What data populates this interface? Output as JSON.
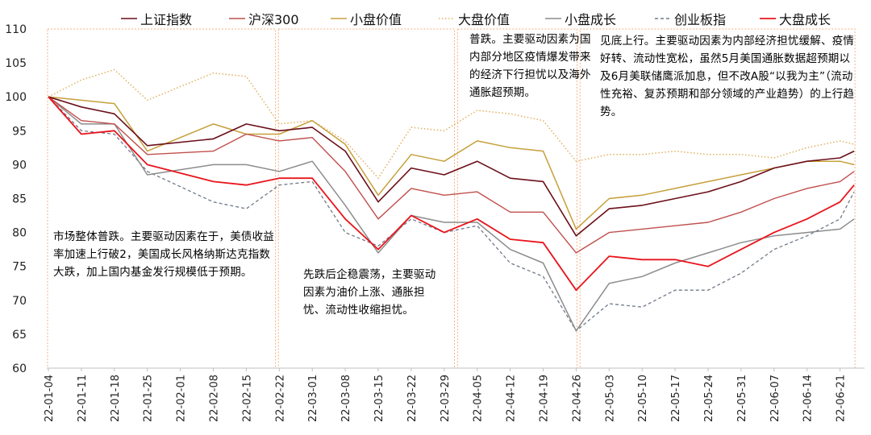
{
  "chart_data": {
    "type": "line",
    "ylim": [
      60,
      110
    ],
    "yticks": [
      60,
      65,
      70,
      75,
      80,
      85,
      90,
      95,
      100,
      105,
      110
    ],
    "xtick_labels": [
      "22-01-04",
      "22-01-11",
      "22-01-18",
      "22-01-25",
      "22-02-01",
      "22-02-08",
      "22-02-15",
      "22-02-22",
      "22-03-01",
      "22-03-08",
      "22-03-15",
      "22-03-22",
      "22-03-29",
      "22-04-05",
      "22-04-12",
      "22-04-19",
      "22-04-26",
      "22-05-03",
      "22-05-10",
      "22-05-17",
      "22-05-24",
      "22-05-31",
      "22-06-07",
      "22-06-14",
      "22-06-21"
    ],
    "x": [
      "22-01-04",
      "22-01-11",
      "22-01-18",
      "22-01-25",
      "22-02-08",
      "22-02-15",
      "22-02-22",
      "22-03-01",
      "22-03-08",
      "22-03-15",
      "22-03-22",
      "22-03-29",
      "22-04-05",
      "22-04-12",
      "22-04-19",
      "22-04-26",
      "22-05-03",
      "22-05-10",
      "22-05-17",
      "22-05-24",
      "22-05-31",
      "22-06-07",
      "22-06-14",
      "22-06-21",
      "22-06-24"
    ],
    "series": [
      {
        "name": "上证指数",
        "color": "#6b0f1a",
        "dash": "solid",
        "width": 1.6,
        "values": [
          100,
          98.5,
          97.5,
          92.8,
          93.8,
          96.0,
          95.0,
          95.5,
          92.0,
          84.5,
          89.5,
          88.5,
          90.5,
          88.0,
          87.5,
          79.5,
          83.5,
          84.0,
          85.0,
          86.0,
          87.5,
          89.5,
          90.5,
          91.0,
          92.0
        ]
      },
      {
        "name": "沪深300",
        "color": "#c0504d",
        "dash": "solid",
        "width": 1.4,
        "values": [
          100,
          96.5,
          96.0,
          91.5,
          92.0,
          94.5,
          93.5,
          94.0,
          89.0,
          82.0,
          86.5,
          85.5,
          86.0,
          83.0,
          83.0,
          77.0,
          80.0,
          80.5,
          81.0,
          81.5,
          83.0,
          85.0,
          86.5,
          87.5,
          89.0
        ]
      },
      {
        "name": "小盘价值",
        "color": "#c5a03a",
        "dash": "solid",
        "width": 1.5,
        "values": [
          100,
          99.5,
          99.0,
          92.0,
          96.0,
          94.5,
          94.5,
          96.5,
          93.0,
          85.5,
          91.5,
          90.5,
          93.5,
          92.5,
          92.0,
          80.5,
          85.0,
          85.5,
          86.5,
          87.5,
          88.5,
          89.5,
          90.5,
          90.5,
          90.0
        ]
      },
      {
        "name": "大盘价值",
        "color": "#e0b060",
        "dash": "dotted",
        "width": 1.5,
        "values": [
          100,
          102.5,
          104.0,
          99.5,
          103.5,
          103.0,
          96.0,
          96.5,
          93.5,
          88.0,
          95.5,
          95.0,
          98.0,
          97.5,
          96.5,
          90.5,
          91.5,
          91.5,
          92.0,
          91.5,
          91.5,
          91.0,
          92.5,
          93.5,
          93.0
        ]
      },
      {
        "name": "小盘成长",
        "color": "#8c8c8c",
        "dash": "solid",
        "width": 1.5,
        "values": [
          100,
          96.0,
          96.0,
          88.5,
          90.0,
          90.0,
          89.0,
          90.5,
          84.0,
          77.0,
          82.5,
          81.5,
          81.5,
          77.5,
          75.5,
          65.5,
          72.5,
          73.5,
          75.5,
          77.0,
          78.5,
          79.5,
          80.0,
          80.5,
          82.0
        ]
      },
      {
        "name": "创业板指",
        "color": "#6f7a8a",
        "dash": "dashed",
        "width": 1.3,
        "values": [
          100,
          95.0,
          94.5,
          89.0,
          84.5,
          83.5,
          87.0,
          87.5,
          80.0,
          78.0,
          82.0,
          80.0,
          81.0,
          75.5,
          73.5,
          65.5,
          69.5,
          69.0,
          71.5,
          71.5,
          74.0,
          77.5,
          79.5,
          82.0,
          86.0
        ]
      },
      {
        "name": "大盘成长",
        "color": "#e8141c",
        "dash": "solid",
        "width": 1.8,
        "values": [
          100,
          94.5,
          95.0,
          90.0,
          87.5,
          87.0,
          88.0,
          88.0,
          82.0,
          77.5,
          82.5,
          80.0,
          82.0,
          79.0,
          78.5,
          71.5,
          76.5,
          76.0,
          76.0,
          75.0,
          77.5,
          80.0,
          82.0,
          84.5,
          87.0
        ]
      }
    ],
    "legend_position": "top",
    "grid": false,
    "annotation_box_color": "#f4b183"
  },
  "annotations": [
    "市场整体普跌。主要驱动因素在于，美债收益率加速上行破2，美国成长风格纳斯达克指数大跌，加上国内基金发行规模低于预期。",
    "先跌后企稳震荡，主要驱动因素为油价上涨、通胀担忧、流动性收缩担忧。",
    "普跌。主要驱动因素为国内部分地区疫情爆发带来的经济下行担忧以及海外通胀超预期。",
    "见底上行。主要驱动因素为内部经济担忧缓解、疫情好转、流动性宽松，虽然5月美国通胀数据超预期以及6月美联储鹰派加息，但不改A股“以我为主”（流动性充裕、复苏预期和部分领域的产业趋势）的上行趋势。"
  ]
}
